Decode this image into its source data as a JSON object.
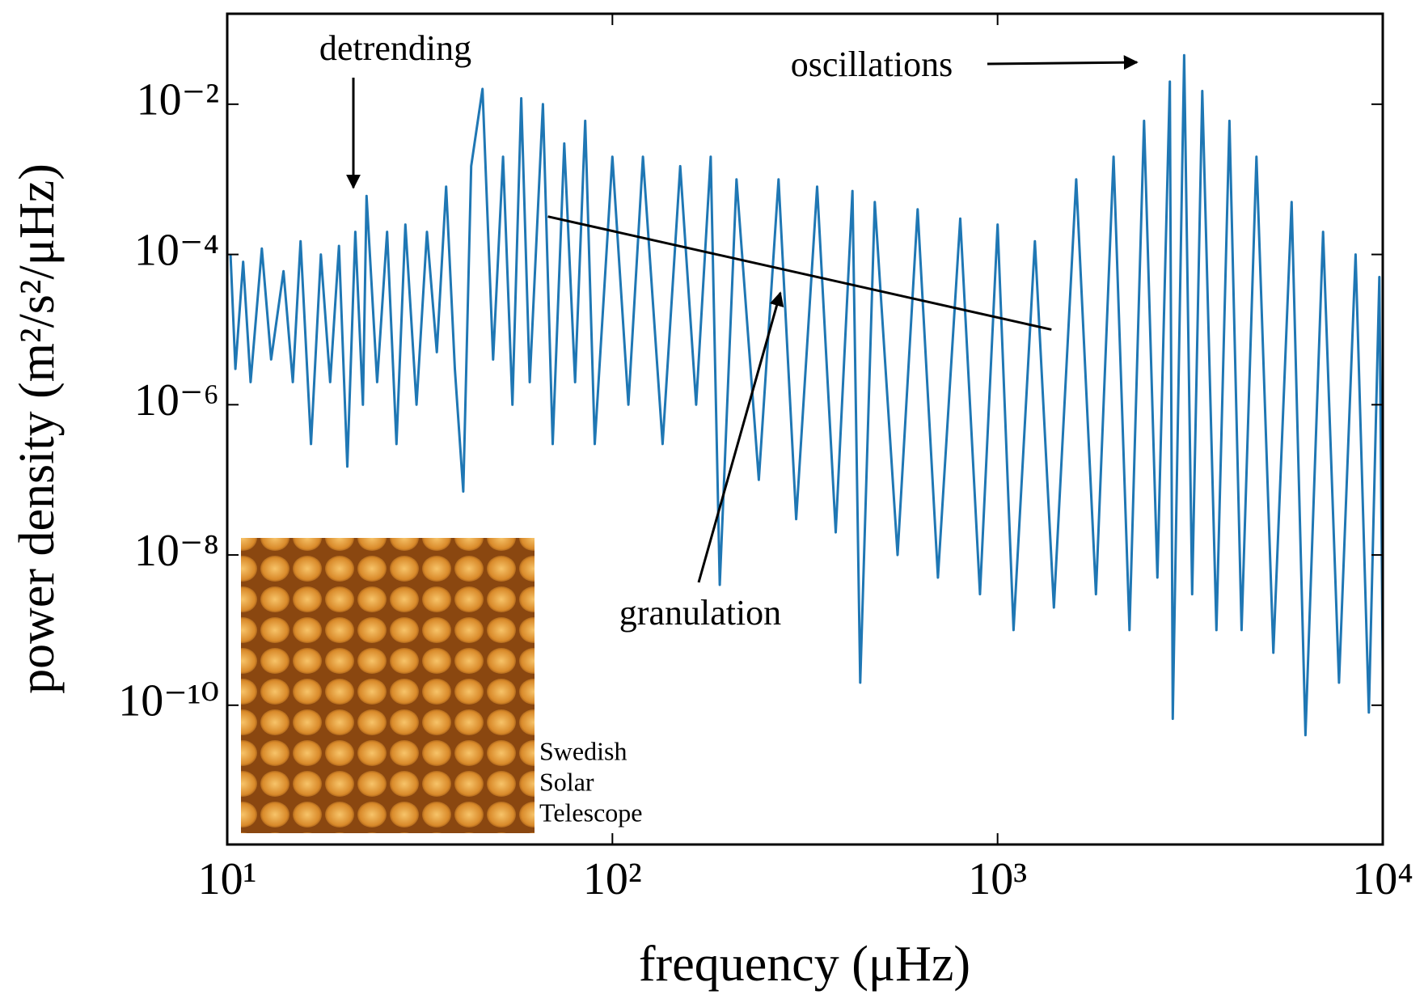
{
  "chart_data": {
    "type": "line",
    "xlabel": "frequency (μHz)",
    "ylabel": "power density (m²/s²/μHz)",
    "log_x": true,
    "log_y": true,
    "xlim": [
      10,
      10000
    ],
    "ylim": [
      1.4e-12,
      0.16
    ],
    "xticks": [
      {
        "value": 10,
        "label": "10¹"
      },
      {
        "value": 100,
        "label": "10²"
      },
      {
        "value": 1000,
        "label": "10³"
      },
      {
        "value": 10000,
        "label": "10⁴"
      }
    ],
    "yticks": [
      {
        "value": 1e-10,
        "label": "10⁻¹⁰"
      },
      {
        "value": 1e-08,
        "label": "10⁻⁸"
      },
      {
        "value": 1e-06,
        "label": "10⁻⁶"
      },
      {
        "value": 0.0001,
        "label": "10⁻⁴"
      },
      {
        "value": 0.01,
        "label": "10⁻²"
      }
    ],
    "series": [
      {
        "color": "#1f77b4",
        "x": [
          10.2,
          10.5,
          11,
          11.5,
          12.3,
          13,
          14,
          14.8,
          15.5,
          16.5,
          17.5,
          18.5,
          19.5,
          20.5,
          21.5,
          22.5,
          23,
          24.5,
          26,
          27.5,
          29,
          31,
          33,
          35,
          37,
          39,
          41,
          43,
          46,
          49,
          52,
          55,
          58,
          61,
          66,
          70,
          75,
          80,
          85,
          90,
          100,
          110,
          120,
          135,
          150,
          165,
          180,
          190,
          210,
          240,
          270,
          300,
          340,
          380,
          420,
          440,
          480,
          550,
          620,
          700,
          800,
          900,
          1000,
          1100,
          1250,
          1400,
          1600,
          1800,
          2000,
          2200,
          2400,
          2600,
          2800,
          2850,
          3050,
          3200,
          3400,
          3700,
          4000,
          4300,
          4700,
          5200,
          5800,
          6300,
          7000,
          7700,
          8500,
          9200,
          9800,
          10000
        ],
        "values": [
          0.0001,
          3e-06,
          8e-05,
          2e-06,
          0.00012,
          4e-06,
          6e-05,
          2e-06,
          0.00015,
          3e-07,
          0.0001,
          2e-06,
          0.00013,
          1.5e-07,
          0.0002,
          1e-06,
          0.0006,
          2e-06,
          0.0002,
          3e-07,
          0.00025,
          1e-06,
          0.0002,
          5e-06,
          0.0008,
          3e-06,
          7e-08,
          0.0015,
          0.016,
          4e-06,
          0.002,
          1e-06,
          0.012,
          2e-06,
          0.01,
          3e-07,
          0.003,
          2e-06,
          0.006,
          3e-07,
          0.002,
          1e-06,
          0.002,
          3e-07,
          0.0015,
          1e-06,
          0.002,
          4e-09,
          0.001,
          1e-07,
          0.001,
          3e-08,
          0.0008,
          2e-08,
          0.0007,
          2e-10,
          0.0005,
          1e-08,
          0.0004,
          5e-09,
          0.0003,
          3e-09,
          0.00025,
          1e-09,
          0.00015,
          2e-09,
          0.001,
          3e-09,
          0.002,
          1e-09,
          0.006,
          5e-09,
          0.02,
          6.6e-11,
          0.045,
          3e-09,
          0.015,
          1e-09,
          0.006,
          1e-09,
          0.002,
          5e-10,
          0.0005,
          4e-11,
          0.0002,
          2e-10,
          0.0001,
          8e-11,
          5e-05,
          3e-10
        ]
      }
    ],
    "trend_line": {
      "color": "#000000",
      "x": [
        68,
        1380
      ],
      "values": [
        0.00032,
        1e-05
      ]
    },
    "annotations": {
      "detrending": "detrending",
      "oscillations": "oscillations",
      "granulation": "granulation"
    },
    "inset_caption": [
      "Swedish",
      "Solar",
      "Telescope"
    ]
  }
}
